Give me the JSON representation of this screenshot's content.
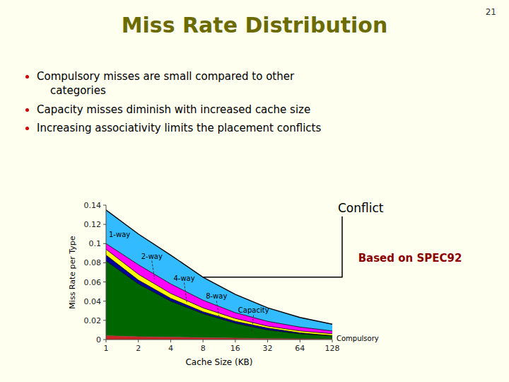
{
  "slide_number": "21",
  "bullet_points": [
    "Compulsory misses are small compared to other\n    categories",
    "Capacity misses diminish with increased cache size",
    "Increasing associativity limits the placement conflicts"
  ],
  "chart_data": {
    "type": "area",
    "title": "Miss Rate Distribution",
    "x_label": "Cache Size (KB)",
    "y_label": "Miss Rate per Type",
    "x": [
      1,
      2,
      4,
      8,
      16,
      32,
      64,
      128
    ],
    "series": [
      {
        "name": "Compulsory",
        "color": "#CC2222",
        "values": [
          0.004,
          0.003,
          0.0025,
          0.002,
          0.0015,
          0.001,
          0.0008,
          0.0005
        ]
      },
      {
        "name": "Capacity",
        "color": "#006600",
        "values": [
          0.082,
          0.058,
          0.04,
          0.027,
          0.017,
          0.01,
          0.006,
          0.004
        ]
      },
      {
        "name": "8-way",
        "color": "#000099",
        "values": [
          0.088,
          0.062,
          0.043,
          0.029,
          0.019,
          0.012,
          0.007,
          0.004
        ]
      },
      {
        "name": "4-way",
        "color": "#FFFF00",
        "values": [
          0.094,
          0.068,
          0.048,
          0.033,
          0.022,
          0.014,
          0.009,
          0.006
        ]
      },
      {
        "name": "2-way",
        "color": "#FF00FF",
        "values": [
          0.1,
          0.078,
          0.058,
          0.041,
          0.028,
          0.019,
          0.013,
          0.009
        ]
      },
      {
        "name": "1-way",
        "color": "#33BBFF",
        "values": [
          0.135,
          0.11,
          0.088,
          0.065,
          0.047,
          0.033,
          0.023,
          0.016
        ]
      }
    ],
    "annotations": [
      "Conflict",
      "Based on SPEC92"
    ],
    "log": "x",
    "xlim": [
      1,
      128
    ],
    "xticks": [
      1,
      2,
      4,
      8,
      16,
      32,
      64,
      128
    ],
    "ylim": [
      0,
      0.14
    ],
    "yticks": [
      0,
      0.02,
      0.04,
      0.06,
      0.08,
      0.1,
      0.12,
      0.14
    ],
    "grid": false,
    "stacked": false
  }
}
